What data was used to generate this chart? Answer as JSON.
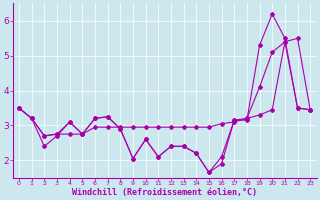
{
  "xlabel": "Windchill (Refroidissement éolien,°C)",
  "xlim": [
    -0.5,
    23.5
  ],
  "ylim": [
    1.5,
    6.5
  ],
  "yticks": [
    2,
    3,
    4,
    5,
    6
  ],
  "xticks": [
    0,
    1,
    2,
    3,
    4,
    5,
    6,
    7,
    8,
    9,
    10,
    11,
    12,
    13,
    14,
    15,
    16,
    17,
    18,
    19,
    20,
    21,
    22,
    23
  ],
  "bg_color": "#cce8ee",
  "line_color": "#aa00aa",
  "series1_y": [
    3.5,
    3.2,
    2.4,
    2.7,
    3.1,
    2.75,
    3.2,
    3.25,
    2.9,
    2.05,
    2.6,
    2.1,
    2.4,
    2.4,
    2.2,
    1.65,
    1.9,
    3.15,
    3.15,
    5.3,
    6.2,
    5.5,
    3.5,
    3.45
  ],
  "series2_y": [
    3.5,
    3.2,
    2.7,
    2.75,
    2.75,
    2.75,
    2.95,
    2.95,
    2.95,
    2.95,
    2.95,
    2.95,
    2.95,
    2.95,
    2.95,
    2.95,
    3.05,
    3.1,
    3.2,
    3.3,
    3.45,
    5.4,
    5.5,
    3.45
  ],
  "series3_y": [
    3.5,
    3.2,
    2.7,
    2.75,
    3.1,
    2.75,
    3.2,
    3.25,
    2.9,
    2.05,
    2.6,
    2.1,
    2.4,
    2.4,
    2.2,
    1.65,
    2.1,
    3.15,
    3.2,
    4.1,
    5.1,
    5.4,
    3.5,
    3.45
  ]
}
